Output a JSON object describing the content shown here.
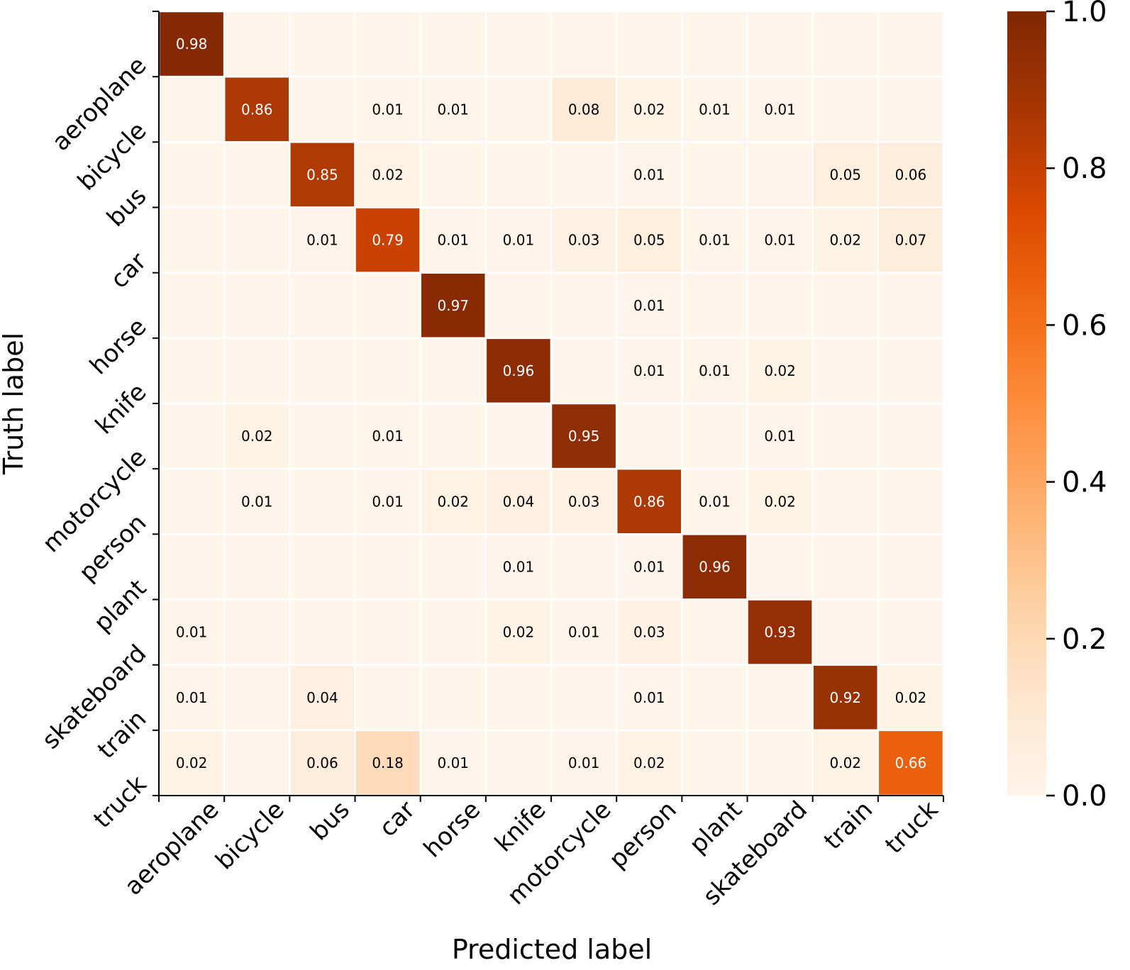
{
  "chart_data": {
    "type": "heatmap",
    "title": "",
    "xlabel": "Predicted label",
    "ylabel": "Truth label",
    "x_categories": [
      "aeroplane",
      "bicycle",
      "bus",
      "car",
      "horse",
      "knife",
      "motorcycle",
      "person",
      "plant",
      "skateboard",
      "train",
      "truck"
    ],
    "y_categories": [
      "aeroplane",
      "bicycle",
      "bus",
      "car",
      "horse",
      "knife",
      "motorcycle",
      "person",
      "plant",
      "skateboard",
      "train",
      "truck"
    ],
    "values": [
      [
        0.98,
        0,
        0,
        0,
        0,
        0,
        0,
        0,
        0,
        0,
        0,
        0
      ],
      [
        0,
        0.86,
        0,
        0.01,
        0.01,
        0,
        0.08,
        0.02,
        0.01,
        0.01,
        0,
        0
      ],
      [
        0,
        0,
        0.85,
        0.02,
        0,
        0,
        0,
        0.01,
        0,
        0,
        0.05,
        0.06
      ],
      [
        0,
        0,
        0.01,
        0.79,
        0.01,
        0.01,
        0.03,
        0.05,
        0.01,
        0.01,
        0.02,
        0.07
      ],
      [
        0,
        0,
        0,
        0,
        0.97,
        0,
        0,
        0.01,
        0,
        0,
        0,
        0
      ],
      [
        0,
        0,
        0,
        0,
        0,
        0.96,
        0,
        0.01,
        0.01,
        0.02,
        0,
        0
      ],
      [
        0,
        0.02,
        0,
        0.01,
        0,
        0,
        0.95,
        0,
        0,
        0.01,
        0,
        0
      ],
      [
        0,
        0.01,
        0,
        0.01,
        0.02,
        0.04,
        0.03,
        0.86,
        0.01,
        0.02,
        0,
        0
      ],
      [
        0,
        0,
        0,
        0,
        0,
        0.01,
        0,
        0.01,
        0.96,
        0,
        0,
        0
      ],
      [
        0.01,
        0,
        0,
        0,
        0,
        0.02,
        0.01,
        0.03,
        0,
        0.93,
        0,
        0
      ],
      [
        0.01,
        0,
        0.04,
        0,
        0,
        0,
        0,
        0.01,
        0,
        0,
        0.92,
        0.02
      ],
      [
        0.02,
        0,
        0.06,
        0.18,
        0.01,
        0,
        0.01,
        0.02,
        0,
        0,
        0.02,
        0.66
      ]
    ],
    "colorbar": {
      "range": [
        0.0,
        1.0
      ],
      "ticks": [
        "0.0",
        "0.2",
        "0.4",
        "0.6",
        "0.8",
        "1.0"
      ],
      "colormap": "Oranges",
      "colors": [
        "#fff5eb",
        "#fee6ce",
        "#fdd0a2",
        "#fdae6b",
        "#fd8d3c",
        "#f16913",
        "#d94801",
        "#a63603",
        "#7f2704"
      ]
    },
    "grid_line_color": "#ffffff"
  }
}
